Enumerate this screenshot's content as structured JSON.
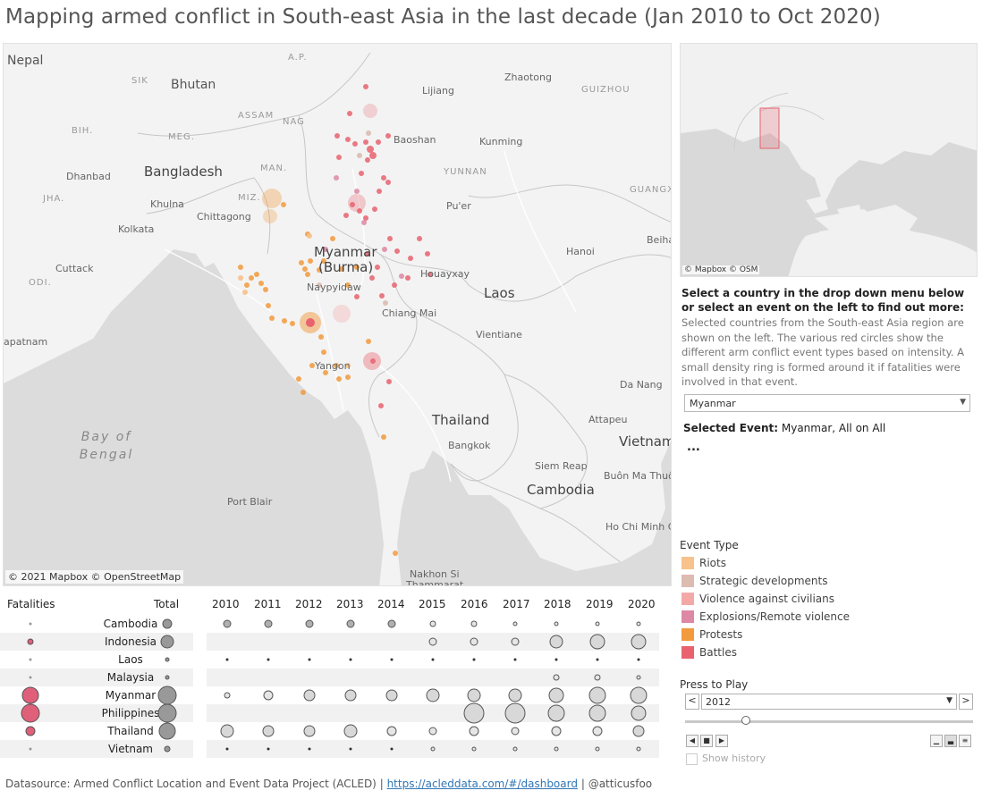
{
  "title": "Mapping armed conflict in South-east Asia in the last decade (Jan 2010 to Oct 2020)",
  "map": {
    "attribution": "© 2021 Mapbox © OpenStreetMap",
    "labels": {
      "nepal": "Nepal",
      "sik": "SIK",
      "bhutan": "Bhutan",
      "ap": "A.P.",
      "assam": "ASSAM",
      "nag": "NAG",
      "bih": "BIH.",
      "meg": "MEG.",
      "man": "MAN.",
      "bangladesh": "Bangladesh",
      "dhanbad": "Dhanbad",
      "jha": "JHA.",
      "khulna": "Khulna",
      "miz": "MIZ.",
      "kolkata": "Kolkata",
      "chittagong": "Chittagong",
      "cuttack": "Cuttack",
      "odi": "ODI.",
      "lijiang": "Lijiang",
      "zhaotong": "Zhaotong",
      "guizhou": "GUIZHOU",
      "baoshan": "Baoshan",
      "kunming": "Kunming",
      "yunnan": "YUNNAN",
      "puer": "Pu'er",
      "guangx": "GUANGX",
      "myanmar": "Myanmar",
      "burma": "(Burma)",
      "naypyidaw": "Naypyidaw",
      "houayxay": "Houayxay",
      "laos": "Laos",
      "hanoi": "Hanoi",
      "beihai": "Beiha",
      "chiang_mai": "Chiang Mai",
      "vientiane": "Vientiane",
      "yangon": "Yangon",
      "da_nang": "Da Nang",
      "thailand": "Thailand",
      "attapeu": "Attapeu",
      "bangkok": "Bangkok",
      "vietnam": "Vietnam",
      "siem_reap": "Siem Reap",
      "buon_ma_thuot": "Buôn Ma Thuột",
      "cambodia": "Cambodia",
      "port_blair": "Port Blair",
      "ho_chi_minh": "Ho Chi Minh C",
      "nakhon": "Nakhon Si",
      "thammarat": "Thammarat",
      "visakhapatnam": "apatnam",
      "bay_line1": "Bay of",
      "bay_line2": "Bengal"
    }
  },
  "minimap": {
    "attribution": "© Mapbox © OSM"
  },
  "info": {
    "heading": "Select a country in the drop down menu below or select an event on the left to find out more:",
    "description": "Selected countries from the South-east Asia region are shown on the left. The various red circles show the different arm conflict event types based on intensity. A small density ring is formed around it if fatalities were involved in that event."
  },
  "country_select": {
    "value": "Myanmar"
  },
  "selected_event": {
    "label": "Selected Event:",
    "value": "Myanmar, All on All",
    "more": "..."
  },
  "legend": {
    "title": "Event Type",
    "items": [
      {
        "label": "Riots",
        "color": "#f7c28c"
      },
      {
        "label": "Strategic developments",
        "color": "#dcbcb0"
      },
      {
        "label": "Violence against civilians",
        "color": "#f4a9a9"
      },
      {
        "label": "Explosions/Remote violence",
        "color": "#dd88a4"
      },
      {
        "label": "Protests",
        "color": "#f29a3e"
      },
      {
        "label": "Battles",
        "color": "#e8636f"
      }
    ]
  },
  "player": {
    "title": "Press to Play",
    "year": "2012",
    "show_history": "Show history",
    "prev": "<",
    "next": ">"
  },
  "table": {
    "headers": {
      "fatalities": "Fatalities",
      "total": "Total"
    },
    "years": [
      "2010",
      "2011",
      "2012",
      "2013",
      "2014",
      "2015",
      "2016",
      "2017",
      "2018",
      "2019",
      "2020"
    ],
    "countries": [
      "Cambodia",
      "Indonesia",
      "Laos",
      "Malaysia",
      "Myanmar",
      "Philippines",
      "Thailand",
      "Vietnam"
    ]
  },
  "footer": {
    "source": "Datasource: Armed Conflict Location and Event Data Project (ACLED)",
    "sep1": "|",
    "link": "https://acleddata.com/#/dashboard",
    "sep2": "|",
    "author": "@atticusfoo"
  }
}
